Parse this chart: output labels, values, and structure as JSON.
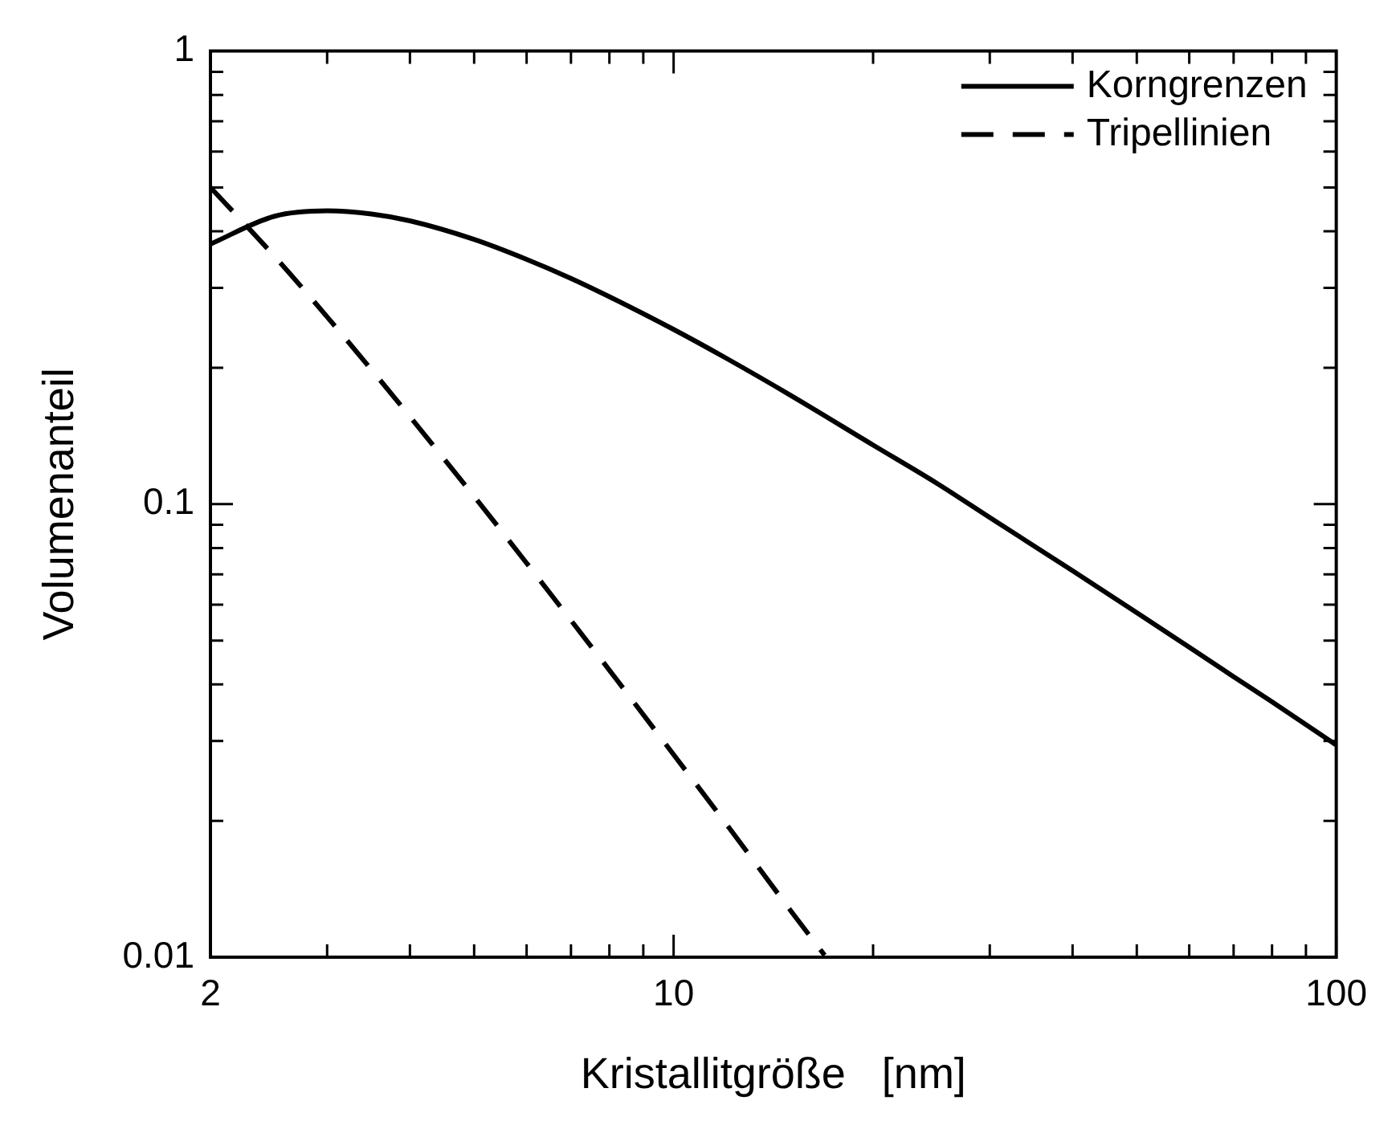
{
  "chart_data": {
    "type": "line",
    "xlabel": "Kristallitgröße   [nm]",
    "ylabel": "Volumenanteil",
    "log": "xy",
    "xlim": [
      2,
      100
    ],
    "ylim": [
      0.01,
      1
    ],
    "xticks": [
      2,
      {
        "value": 3,
        "label": null
      },
      {
        "value": 4,
        "label": null
      },
      {
        "value": 5,
        "label": null
      },
      {
        "value": 6,
        "label": null
      },
      {
        "value": 7,
        "label": null
      },
      {
        "value": 8,
        "label": null
      },
      {
        "value": 9,
        "label": null
      },
      10,
      {
        "value": 20,
        "label": null
      },
      {
        "value": 30,
        "label": null
      },
      {
        "value": 40,
        "label": null
      },
      {
        "value": 50,
        "label": null
      },
      {
        "value": 60,
        "label": null
      },
      {
        "value": 70,
        "label": null
      },
      {
        "value": 80,
        "label": null
      },
      {
        "value": 90,
        "label": null
      },
      100
    ],
    "yticks": [
      0.01,
      {
        "value": 0.02,
        "label": null
      },
      {
        "value": 0.03,
        "label": null
      },
      {
        "value": 0.04,
        "label": null
      },
      {
        "value": 0.05,
        "label": null
      },
      {
        "value": 0.06,
        "label": null
      },
      {
        "value": 0.07,
        "label": null
      },
      {
        "value": 0.08,
        "label": null
      },
      {
        "value": 0.09,
        "label": null
      },
      0.1,
      {
        "value": 0.2,
        "label": null
      },
      {
        "value": 0.3,
        "label": null
      },
      {
        "value": 0.4,
        "label": null
      },
      {
        "value": 0.5,
        "label": null
      },
      {
        "value": 0.6,
        "label": null
      },
      {
        "value": 0.7,
        "label": null
      },
      {
        "value": 0.8,
        "label": null
      },
      {
        "value": 0.9,
        "label": null
      },
      1
    ],
    "grid": false,
    "legend": "top right",
    "marker": "none",
    "series": [
      {
        "name": "Korngrenzen",
        "color": "#000000",
        "line_style": "solid",
        "x": [
          2,
          2.5,
          3,
          3.5,
          4,
          5,
          6,
          7,
          8,
          10,
          12,
          15,
          20,
          25,
          30,
          40,
          50,
          60,
          70,
          80,
          100
        ],
        "values": [
          0.375,
          0.432,
          0.444,
          0.437,
          0.422,
          0.384,
          0.347,
          0.315,
          0.287,
          0.243,
          0.21,
          0.174,
          0.135,
          0.111,
          0.0934,
          0.0713,
          0.0576,
          0.0483,
          0.0416,
          0.0366,
          0.0294
        ]
      },
      {
        "name": "Tripellinien",
        "color": "#000000",
        "line_style": "dashed",
        "x": [
          2,
          2.5,
          3,
          3.5,
          4,
          5,
          6,
          7,
          8,
          10,
          12,
          15,
          16.9
        ],
        "values": [
          0.5,
          0.352,
          0.259,
          0.198,
          0.156,
          0.104,
          0.0741,
          0.0554,
          0.043,
          0.028,
          0.0197,
          0.0127,
          0.0101
        ]
      }
    ]
  }
}
